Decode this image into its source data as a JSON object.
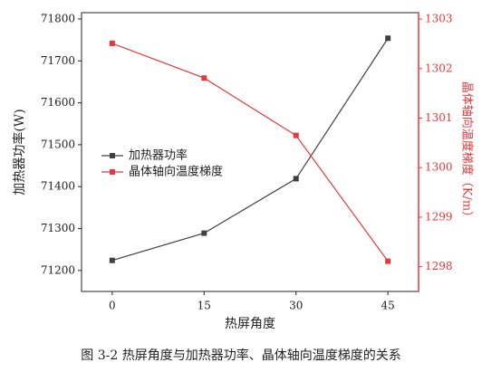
{
  "chart_data": {
    "type": "line",
    "x": [
      0,
      15,
      30,
      45
    ],
    "xlim": [
      -5,
      50
    ],
    "xticks": [
      0,
      15,
      30,
      45
    ],
    "ylim": [
      71150,
      71815
    ],
    "yticks": [
      71200,
      71300,
      71400,
      71500,
      71600,
      71700,
      71800
    ],
    "y2lim": [
      1297.5,
      1303.13
    ],
    "y2ticks": [
      1298,
      1299,
      1300,
      1301,
      1302,
      1303
    ],
    "xlabel": "热屏角度",
    "ylabel": "加热器功率(W)",
    "y2label": "晶体轴向温度梯度（K/m）",
    "series": [
      {
        "name": "加热器功率",
        "color": "#404040",
        "values": [
          71224,
          71289,
          71419,
          71754
        ]
      },
      {
        "name": "晶体轴向温度梯度",
        "color": "#e8373a",
        "axis": "y2",
        "values": [
          1302.51,
          1301.81,
          1300.65,
          1298.11
        ]
      }
    ],
    "caption": "图 3-2   热屏角度与加热器功率、晶体轴向温度梯度的关系"
  }
}
